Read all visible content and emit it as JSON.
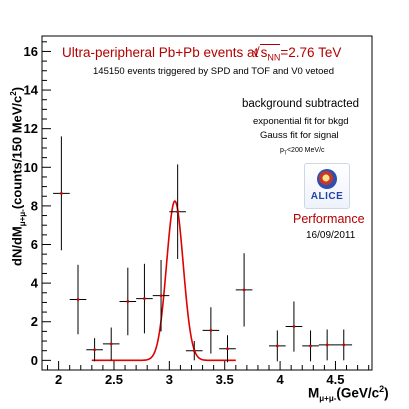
{
  "chart_data": {
    "type": "scatter",
    "title": "Ultra-peripheral Pb+Pb events at",
    "title_energy_symbol": "s",
    "title_energy_subscript": "NN",
    "title_energy_value": "=2.76 TeV",
    "subtitle": "145150 events triggered by SPD and TOF and V0 vetoed",
    "xlabel": "M",
    "xlabel_subscript": "μ+μ-",
    "xlabel_unit": "(GeV/c",
    "xlabel_unit_sup": "2",
    "xlabel_unit_end": ")",
    "ylabel": "dN/dM",
    "ylabel_subscript": "μ+μ-",
    "ylabel_unit": "(counts/150 MeV/c",
    "ylabel_unit_sup": "2",
    "ylabel_unit_end": ")",
    "xlim": [
      1.85,
      4.83
    ],
    "ylim": [
      -0.5,
      16.8
    ],
    "x_ticks": [
      "2",
      "2.5",
      "3",
      "3.5",
      "4",
      "4.5"
    ],
    "y_ticks": [
      "0",
      "2",
      "4",
      "6",
      "8",
      "10",
      "12",
      "14",
      "16"
    ],
    "grid": false,
    "annotations": {
      "line1": "background subtracted",
      "line2": "exponential fit for bkgd",
      "line3": "Gauss fit for signal",
      "line4_p": "p",
      "line4_sub": "T",
      "line4_rest": "<200 MeV/c",
      "performance": "Performance",
      "date": "16/09/2011",
      "logo_text": "ALICE"
    },
    "series": [
      {
        "points": [
          {
            "x": 2.025,
            "y": 8.65,
            "yerr": 2.95
          },
          {
            "x": 2.175,
            "y": 3.15,
            "yerr": 1.8
          },
          {
            "x": 2.325,
            "y": 0.55,
            "yerr": 0.6
          },
          {
            "x": 2.475,
            "y": 0.85,
            "yerr": 0.85
          },
          {
            "x": 2.625,
            "y": 3.05,
            "yerr": 1.75
          },
          {
            "x": 2.775,
            "y": 3.2,
            "yerr": 1.8
          },
          {
            "x": 2.925,
            "y": 3.35,
            "yerr": 1.85
          },
          {
            "x": 3.075,
            "y": 7.7,
            "yerr": 2.45
          },
          {
            "x": 3.225,
            "y": 0.5,
            "yerr": 0.5
          },
          {
            "x": 3.375,
            "y": 1.55,
            "yerr": 1.2
          },
          {
            "x": 3.525,
            "y": 0.6,
            "yerr": 0.7
          },
          {
            "x": 3.675,
            "y": 3.65,
            "yerr": 1.9
          },
          {
            "x": 3.975,
            "y": 0.75,
            "yerr": 0.8
          },
          {
            "x": 4.125,
            "y": 1.75,
            "yerr": 1.3
          },
          {
            "x": 4.275,
            "y": 0.75,
            "yerr": 0.8
          },
          {
            "x": 4.425,
            "y": 0.8,
            "yerr": 0.8
          },
          {
            "x": 4.575,
            "y": 0.8,
            "yerr": 0.8
          }
        ],
        "bin_half_width": 0.075,
        "color": "#000000",
        "center_color": "#cc0000"
      }
    ],
    "fit": {
      "type": "gauss",
      "amplitude": 8.25,
      "mean": 3.05,
      "sigma": 0.075,
      "range": [
        2.3,
        3.6
      ],
      "color": "#e00000"
    }
  }
}
